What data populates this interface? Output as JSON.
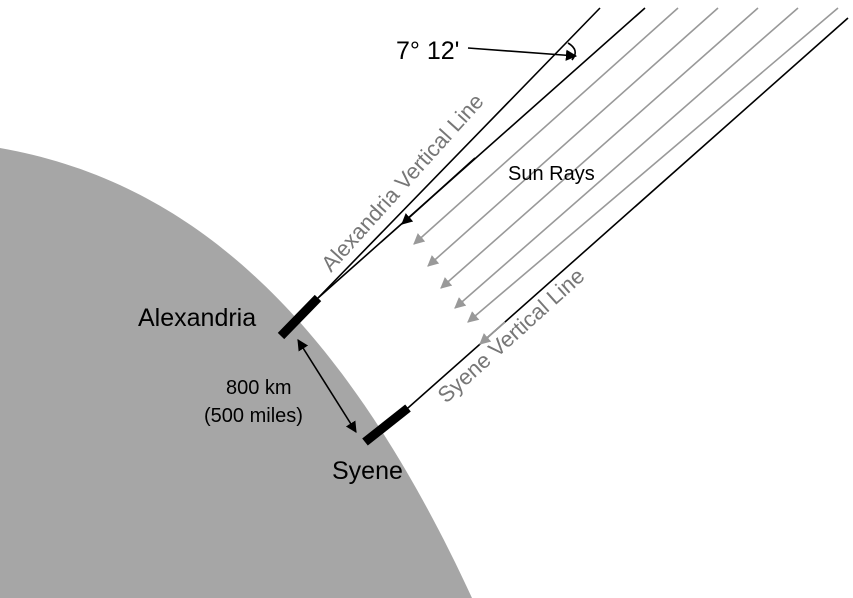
{
  "labels": {
    "angle": "7° 12'",
    "alexandria_vertical": "Alexandria Vertical Line",
    "sun_rays": "Sun Rays",
    "alexandria": "Alexandria",
    "distance_km": "800 km",
    "distance_miles": "(500 miles)",
    "syene_vertical": "Syene Vertical Line",
    "syene": "Syene"
  },
  "colors": {
    "earth": "#a6a6a6",
    "ray_gray": "#999999",
    "line": "#000000",
    "label_gray": "#777777"
  },
  "angle_between_verticals": "7° 12'",
  "distance": {
    "km": 800,
    "miles": 500
  }
}
